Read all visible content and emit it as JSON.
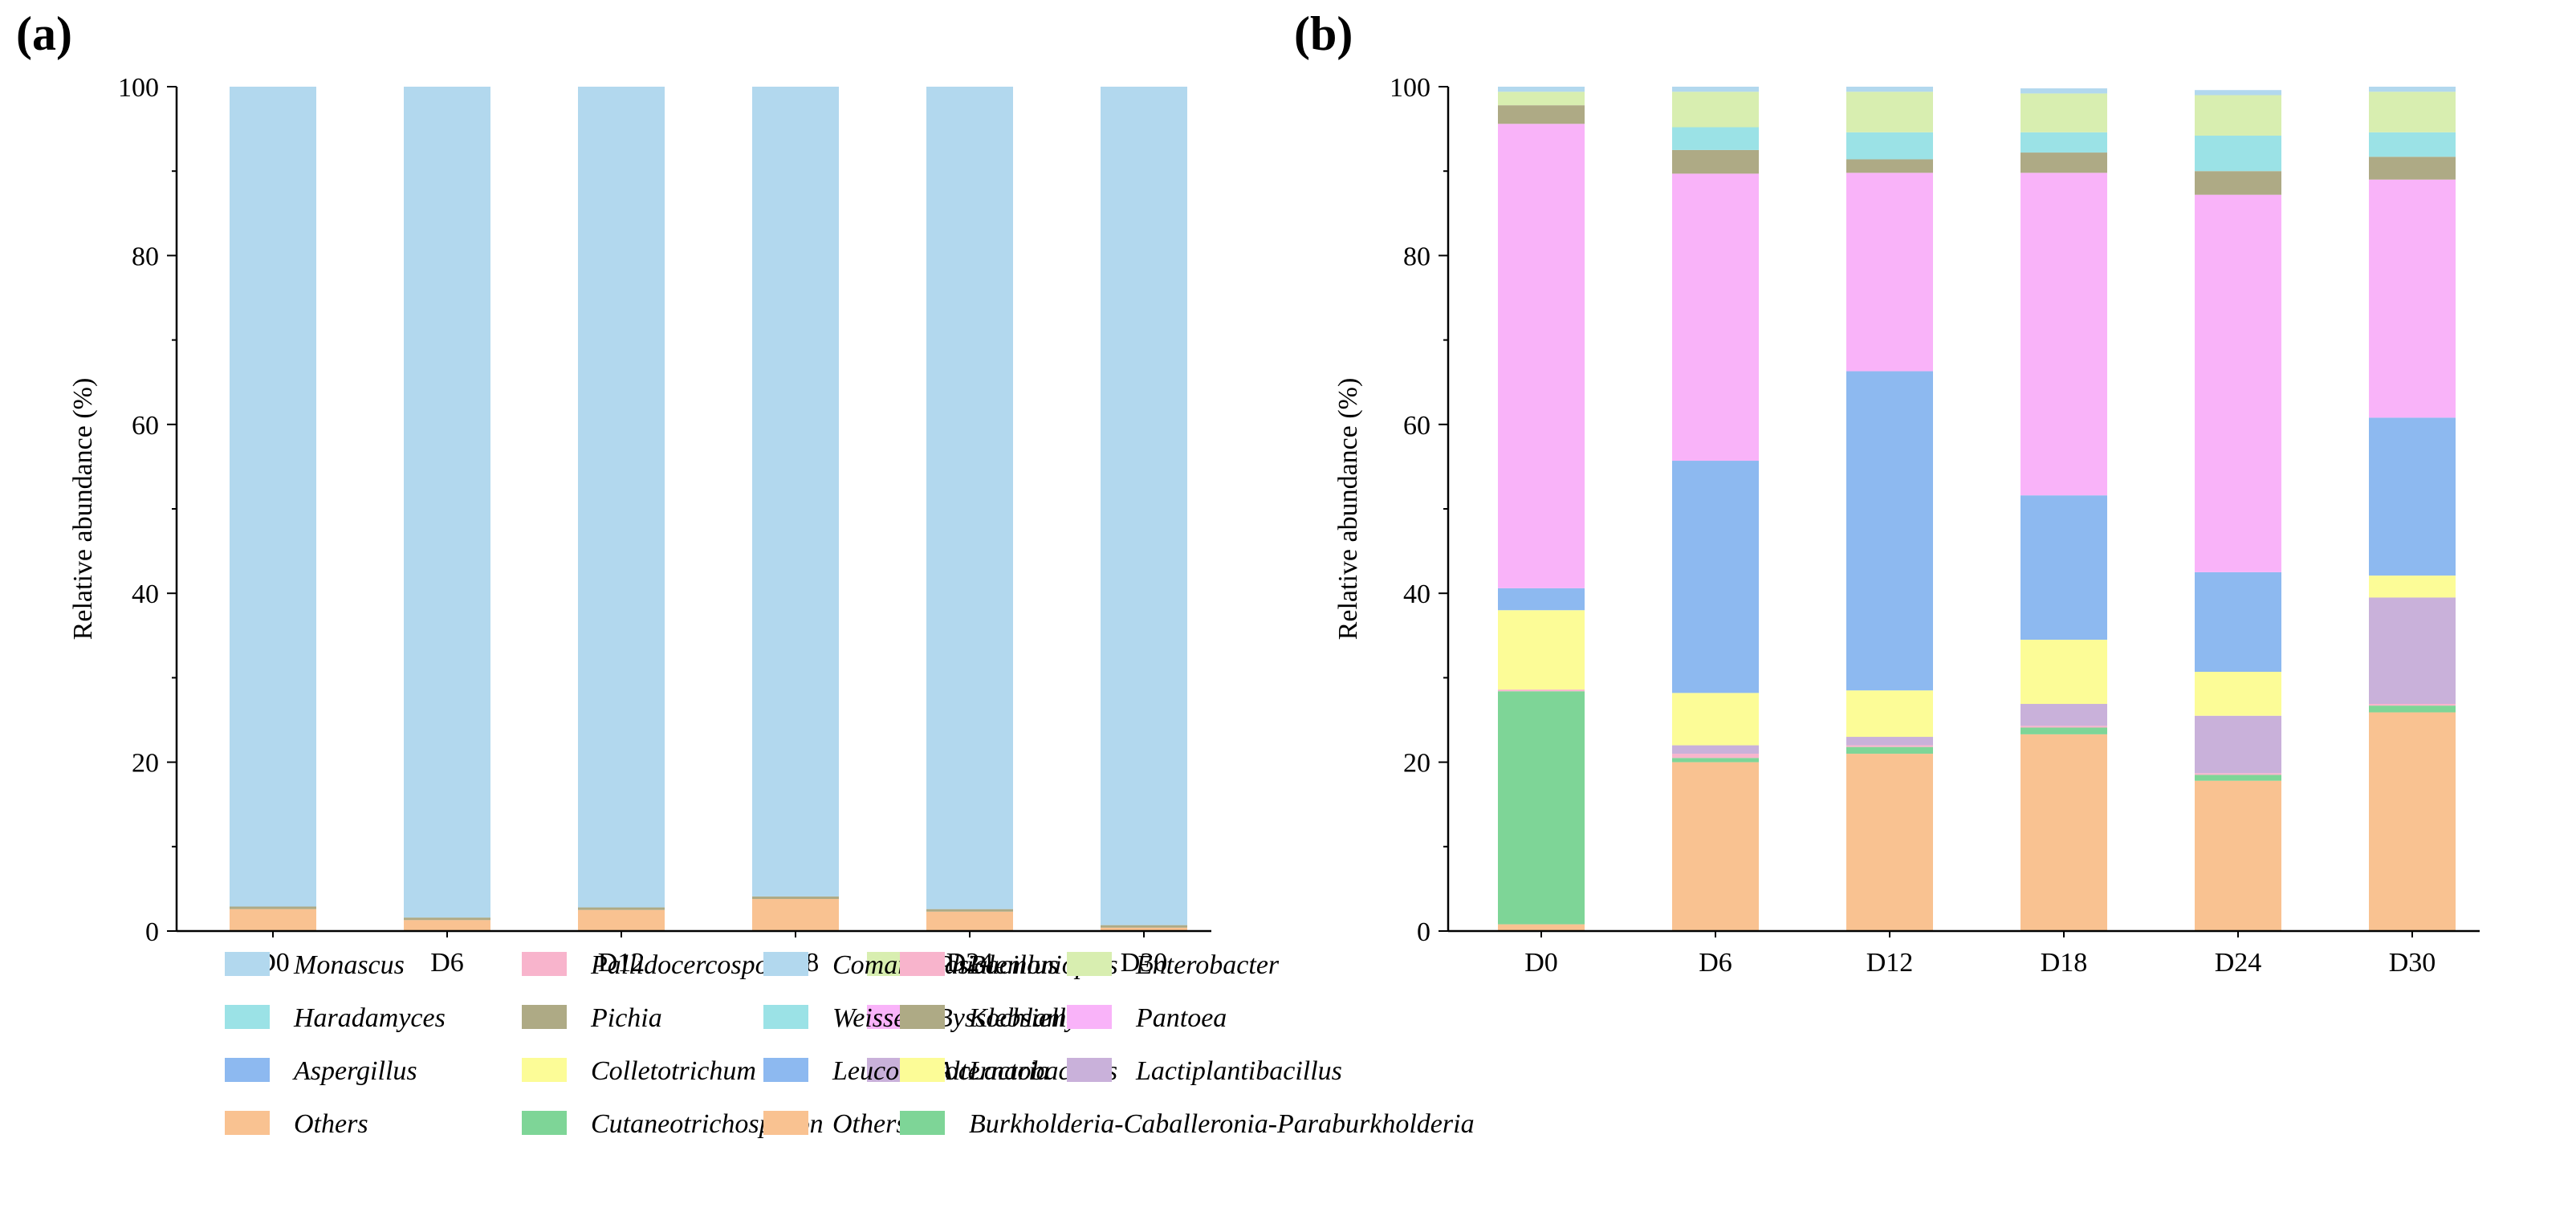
{
  "chart_data": [
    {
      "panel_label": "(a)",
      "type": "bar",
      "stacked": true,
      "categories": [
        "D0",
        "D6",
        "D12",
        "D18",
        "D24",
        "D30"
      ],
      "ylabel": "Relative abundance (%)",
      "xlabel": "",
      "ylim": [
        0,
        100
      ],
      "yticks": [
        "0",
        "20",
        "40",
        "60",
        "80",
        "100"
      ],
      "legend_position": "bottom",
      "legend": [
        [
          "Monascus",
          "Pallidocercospora",
          "Phialemoniopsis"
        ],
        [
          "Haradamyces",
          "Pichia",
          "Byssochlamys"
        ],
        [
          "Aspergillus",
          "Colletotrichum",
          "Alternaria"
        ],
        [
          "Others",
          "Cutaneotrichosporon"
        ]
      ],
      "colors": {
        "Monascus": "#b2d8ee",
        "Haradamyces": "#9be2e6",
        "Aspergillus": "#8db9f0",
        "Others": "#f9c291",
        "Pallidocercospora": "#f8b4cc",
        "Pichia": "#aeaa85",
        "Colletotrichum": "#fcfc97",
        "Cutaneotrichosporon": "#7ed597",
        "Phialemoniopsis": "#d8eeb0",
        "Byssochlamys": "#f9b3f9",
        "Alternaria": "#c9b1da"
      },
      "series": [
        {
          "name": "Others",
          "values": [
            2.6,
            1.3,
            2.5,
            3.8,
            2.3,
            0.4
          ]
        },
        {
          "name": "Pichia",
          "values": [
            0.3,
            0.3,
            0.3,
            0.3,
            0.3,
            0.3
          ]
        },
        {
          "name": "Monascus",
          "values": [
            97.1,
            98.4,
            97.2,
            95.9,
            97.4,
            99.3
          ]
        }
      ]
    },
    {
      "panel_label": "(b)",
      "type": "bar",
      "stacked": true,
      "categories": [
        "D0",
        "D6",
        "D12",
        "D18",
        "D24",
        "D30"
      ],
      "ylabel": "Relative abundance (%)",
      "xlabel": "",
      "ylim": [
        0,
        100
      ],
      "yticks": [
        "0",
        "20",
        "40",
        "60",
        "80",
        "100"
      ],
      "legend_position": "bottom",
      "legend": [
        [
          "Comamonas",
          "Bacillus",
          "Enterobacter"
        ],
        [
          "Weissella",
          "Klebsiella",
          "Pantoea"
        ],
        [
          "Leuconostoc",
          "Lactobacillus",
          "Lactiplantibacillus"
        ],
        [
          "Others",
          "Burkholderia-Caballeronia-Paraburkholderia"
        ]
      ],
      "colors": {
        "Comamonas": "#b2d8ee",
        "Weissella": "#9be2e6",
        "Leuconostoc": "#8db9f0",
        "Others": "#f9c291",
        "Bacillus": "#f8b4cc",
        "Klebsiella": "#aeaa85",
        "Lactobacillus": "#fcfc97",
        "Burkholderia-Caballeronia-Paraburkholderia": "#7ed597",
        "Enterobacter": "#d8eeb0",
        "Pantoea": "#f9b3f9",
        "Lactiplantibacillus": "#c9b1da"
      },
      "series": [
        {
          "name": "Others",
          "values": [
            0.8,
            20.0,
            21.0,
            23.3,
            17.8,
            25.9
          ]
        },
        {
          "name": "Burkholderia-Caballeronia-Paraburkholderia",
          "values": [
            27.6,
            0.5,
            0.8,
            0.8,
            0.7,
            0.8
          ]
        },
        {
          "name": "Bacillus",
          "values": [
            0.2,
            0.5,
            0.2,
            0.2,
            0.2,
            0.2
          ]
        },
        {
          "name": "Lactiplantibacillus",
          "values": [
            0.0,
            1.0,
            1.0,
            2.6,
            6.8,
            12.6
          ]
        },
        {
          "name": "Lactobacillus",
          "values": [
            9.4,
            6.2,
            5.5,
            7.6,
            5.2,
            2.6
          ]
        },
        {
          "name": "Leuconostoc",
          "values": [
            2.6,
            27.5,
            37.8,
            17.1,
            11.8,
            18.7
          ]
        },
        {
          "name": "Pantoea",
          "values": [
            55.0,
            34.0,
            23.5,
            38.2,
            44.7,
            28.2
          ]
        },
        {
          "name": "Klebsiella",
          "values": [
            2.2,
            2.8,
            1.6,
            2.4,
            2.8,
            2.7
          ]
        },
        {
          "name": "Weissella",
          "values": [
            0.0,
            2.7,
            3.2,
            2.4,
            4.2,
            2.9
          ]
        },
        {
          "name": "Enterobacter",
          "values": [
            1.6,
            4.2,
            4.8,
            4.6,
            4.8,
            4.8
          ]
        },
        {
          "name": "Comamonas",
          "values": [
            0.6,
            0.6,
            0.6,
            0.6,
            0.6,
            0.6
          ]
        }
      ]
    }
  ]
}
